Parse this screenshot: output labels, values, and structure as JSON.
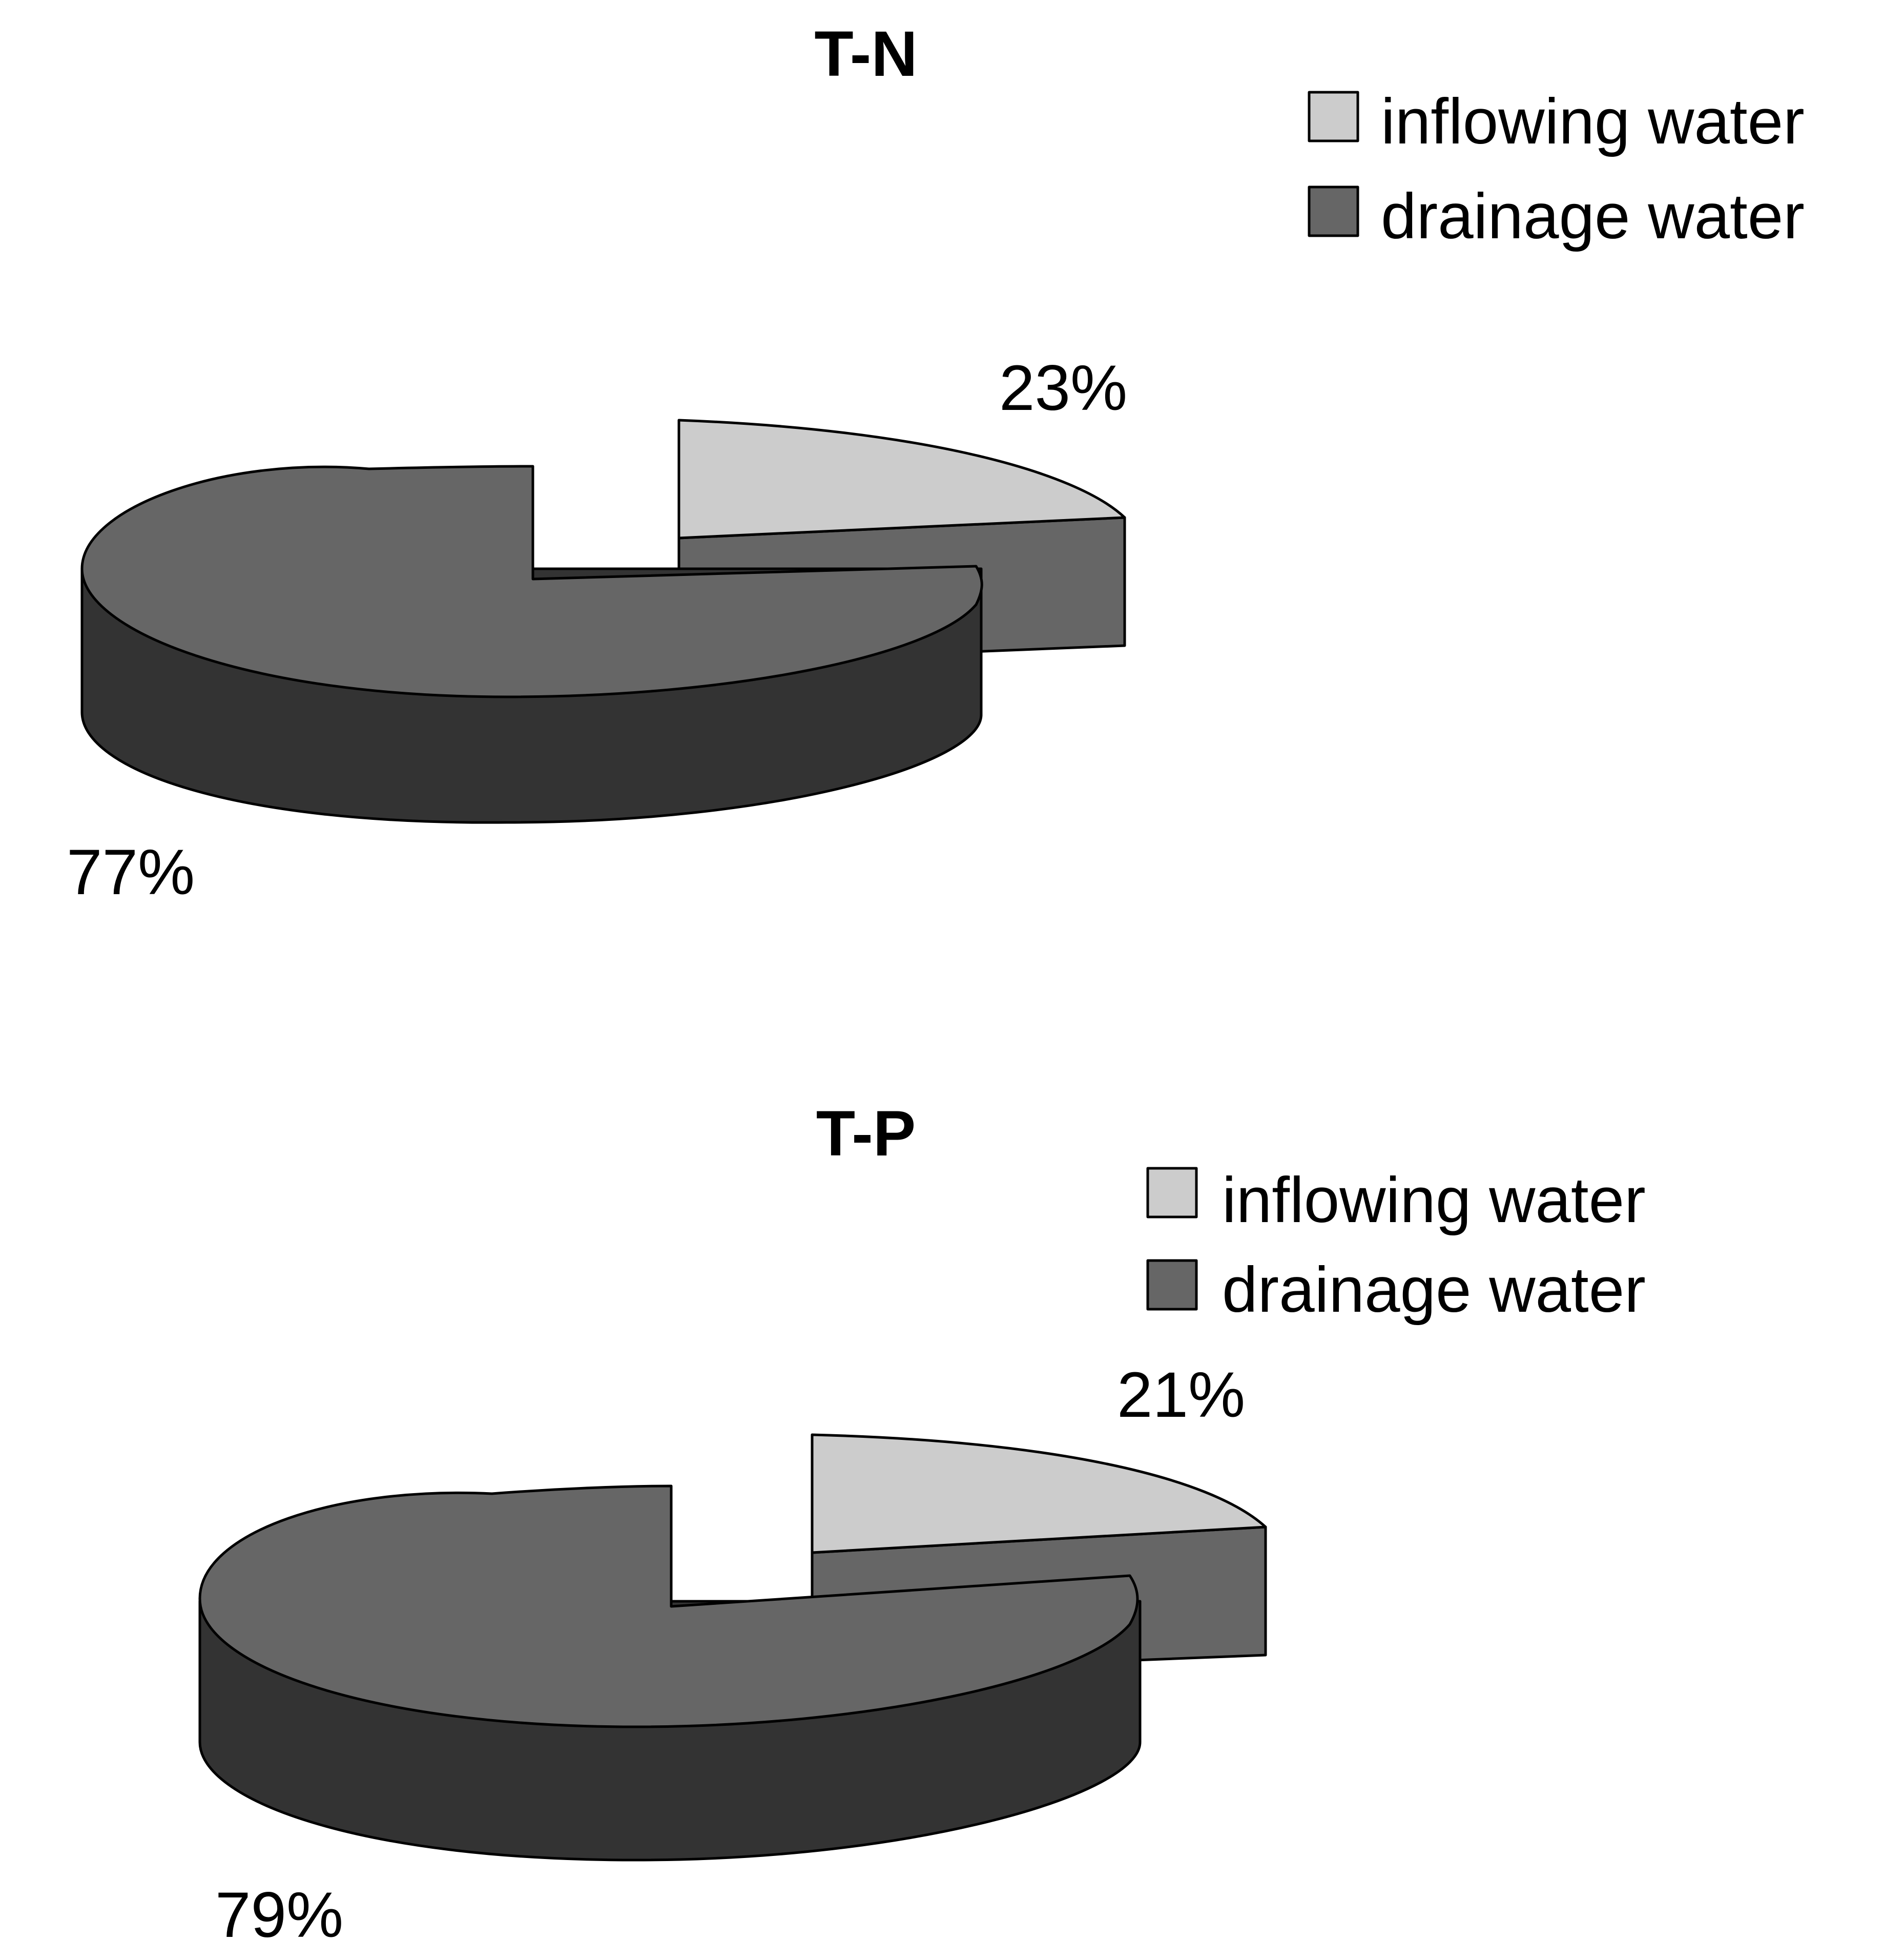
{
  "chart_data": [
    {
      "type": "pie",
      "style": "3d-exploded",
      "title": "T-N",
      "slices": [
        {
          "label": "inflowing water",
          "value": 23,
          "value_label": "23%"
        },
        {
          "label": "drainage water",
          "value": 77,
          "value_label": "77%"
        }
      ],
      "legend_position": "top-right"
    },
    {
      "type": "pie",
      "style": "3d-exploded",
      "title": "T-P",
      "slices": [
        {
          "label": "inflowing water",
          "value": 21,
          "value_label": "21%"
        },
        {
          "label": "drainage water",
          "value": 79,
          "value_label": "79%"
        }
      ],
      "legend_position": "top-right"
    }
  ],
  "colors": {
    "inflowing_top": "#cccccc",
    "drainage_top": "#666666",
    "side_dark": "#333333",
    "outline": "#000000"
  }
}
